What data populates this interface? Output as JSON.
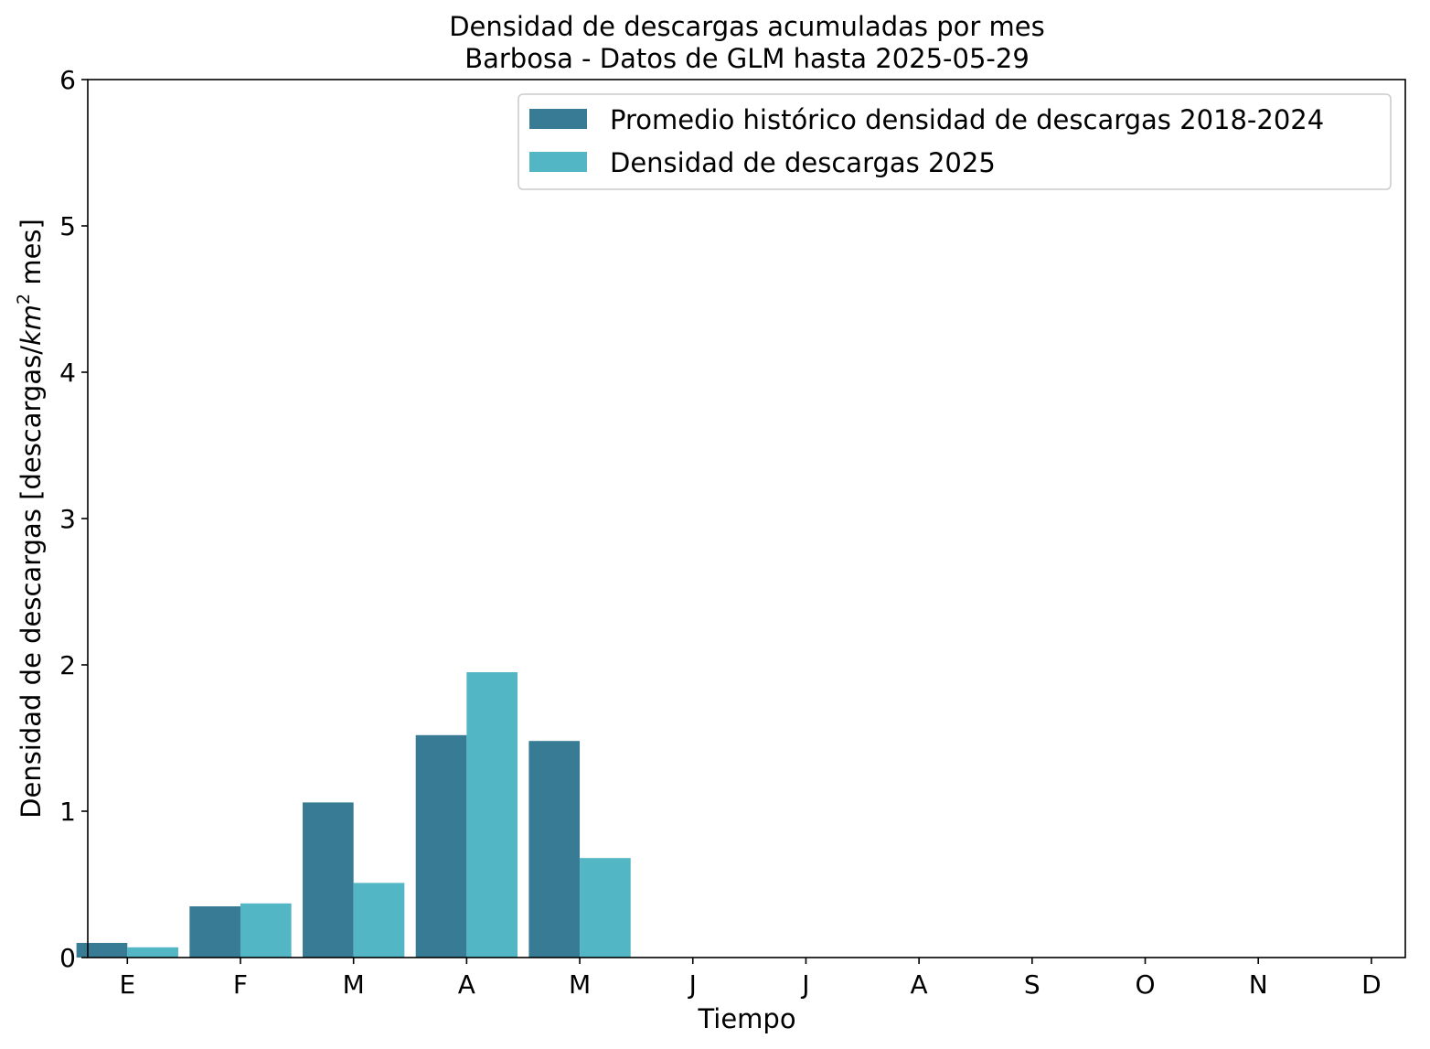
{
  "chart_data": {
    "type": "bar",
    "title": "Densidad de descargas acumuladas por mes",
    "subtitle": "Barbosa - Datos de GLM hasta 2025-05-29",
    "xlabel": "Tiempo",
    "ylabel_prefix": "Densidad de descargas [descargas/",
    "ylabel_unit": "km",
    "ylabel_exp": "2",
    "ylabel_suffix": " mes]",
    "categories": [
      "E",
      "F",
      "M",
      "A",
      "M",
      "J",
      "J",
      "A",
      "S",
      "O",
      "N",
      "D"
    ],
    "ylim": [
      0,
      6
    ],
    "yticks": [
      0,
      1,
      2,
      3,
      4,
      5,
      6
    ],
    "grid": false,
    "legend_position": "top-right",
    "series": [
      {
        "name": "Promedio histórico densidad de descargas 2018-2024",
        "color": "#377c94",
        "values": [
          0.1,
          0.35,
          1.06,
          1.52,
          1.48,
          null,
          null,
          null,
          null,
          null,
          null,
          null
        ]
      },
      {
        "name": "Densidad de descargas 2025",
        "color": "#52b6c4",
        "values": [
          0.07,
          0.37,
          0.51,
          1.95,
          0.68,
          null,
          null,
          null,
          null,
          null,
          null,
          null
        ]
      }
    ]
  }
}
